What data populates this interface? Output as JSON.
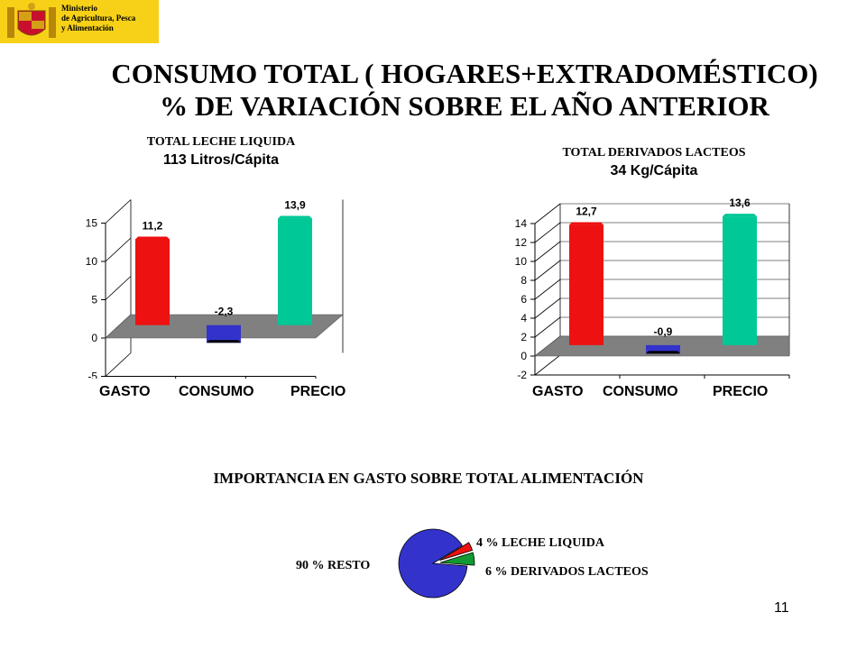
{
  "header": {
    "logo_lines": [
      "Ministerio",
      "de Agricultura, Pesca",
      "y Alimentación"
    ],
    "title_line1": "CONSUMO TOTAL ( HOGARES+EXTRADOMÉSTICO)",
    "title_line2": "% DE VARIACIÓN SOBRE EL AÑO ANTERIOR"
  },
  "colors": {
    "gasto": "#ee1111",
    "consumo": "#3333cc",
    "precio": "#00c896",
    "floor": "#808080",
    "logo_bg": "#f7d117"
  },
  "chart_data": [
    {
      "type": "bar",
      "title": "TOTAL LECHE LIQUIDA",
      "subtitle": "113 Litros/Cápita",
      "categories": [
        "GASTO",
        "CONSUMO",
        "PRECIO"
      ],
      "values": [
        11.2,
        -2.3,
        13.9
      ],
      "value_labels": [
        "11,2",
        "-2,3",
        "13,9"
      ],
      "yticks": [
        "-5",
        "0",
        "5",
        "10",
        "15"
      ],
      "ylim": [
        -5,
        15
      ],
      "grid": false
    },
    {
      "type": "bar",
      "title": "TOTAL DERIVADOS LACTEOS",
      "subtitle": "34 Kg/Cápita",
      "categories": [
        "GASTO",
        "CONSUMO",
        "PRECIO"
      ],
      "values": [
        12.7,
        -0.9,
        13.6
      ],
      "value_labels": [
        "12,7",
        "-0,9",
        "13,6"
      ],
      "yticks": [
        "-2",
        "0",
        "2",
        "4",
        "6",
        "8",
        "10",
        "12",
        "14"
      ],
      "ylim": [
        -2,
        14
      ],
      "grid": true
    },
    {
      "type": "pie",
      "title": "IMPORTANCIA EN GASTO SOBRE TOTAL ALIMENTACIÓN",
      "slices": [
        {
          "label": "90 % RESTO",
          "value": 90,
          "color": "#3333cc"
        },
        {
          "label": "4 % LECHE LIQUIDA",
          "value": 4,
          "color": "#ee1111"
        },
        {
          "label": "6 % DERIVADOS LACTEOS",
          "value": 6,
          "color": "#119933"
        }
      ]
    }
  ],
  "page_number": "11"
}
